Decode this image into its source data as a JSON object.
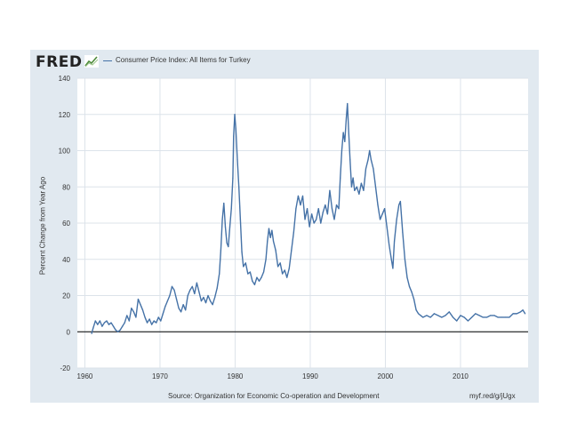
{
  "header": {
    "logo_text": "FRED",
    "logo_icon": "fred-graph-icon"
  },
  "footer": {
    "source": "Source: Organization for Economic Co-operation and Development",
    "shortlink": "myf.red/g/jUgx"
  },
  "colors": {
    "frame": "#e1e9f0",
    "plot_bg": "#ffffff",
    "series": "#4572a7",
    "grid": "#dce3ea",
    "zero_line": "#000000"
  },
  "chart_data": {
    "type": "line",
    "title": "",
    "xlabel": "",
    "ylabel": "Percent Change from Year Ago",
    "xlim": [
      1959,
      2019
    ],
    "ylim": [
      -20,
      140
    ],
    "x_ticks": [
      1960,
      1970,
      1980,
      1990,
      2000,
      2010
    ],
    "y_ticks": [
      -20,
      0,
      20,
      40,
      60,
      80,
      100,
      120,
      140
    ],
    "grid": true,
    "zero_line": true,
    "legend": "top-left",
    "series": [
      {
        "name": "Consumer Price Index: All Items for Turkey",
        "points": [
          [
            1960.9,
            -1
          ],
          [
            1961.1,
            2
          ],
          [
            1961.4,
            6
          ],
          [
            1961.7,
            4
          ],
          [
            1962.0,
            6
          ],
          [
            1962.3,
            3
          ],
          [
            1962.6,
            5
          ],
          [
            1962.9,
            6
          ],
          [
            1963.2,
            4
          ],
          [
            1963.5,
            5
          ],
          [
            1963.8,
            3
          ],
          [
            1964.1,
            1
          ],
          [
            1964.4,
            0
          ],
          [
            1964.7,
            1
          ],
          [
            1965.0,
            3
          ],
          [
            1965.3,
            5
          ],
          [
            1965.6,
            9
          ],
          [
            1965.9,
            6
          ],
          [
            1966.2,
            13
          ],
          [
            1966.5,
            11
          ],
          [
            1966.8,
            8
          ],
          [
            1967.1,
            18
          ],
          [
            1967.4,
            15
          ],
          [
            1967.7,
            12
          ],
          [
            1968.0,
            8
          ],
          [
            1968.3,
            5
          ],
          [
            1968.6,
            7
          ],
          [
            1968.9,
            4
          ],
          [
            1969.2,
            6
          ],
          [
            1969.5,
            5
          ],
          [
            1969.8,
            8
          ],
          [
            1970.1,
            6
          ],
          [
            1970.4,
            10
          ],
          [
            1970.7,
            14
          ],
          [
            1971.0,
            17
          ],
          [
            1971.3,
            20
          ],
          [
            1971.6,
            25
          ],
          [
            1971.9,
            23
          ],
          [
            1972.2,
            18
          ],
          [
            1972.5,
            13
          ],
          [
            1972.8,
            11
          ],
          [
            1973.1,
            15
          ],
          [
            1973.4,
            12
          ],
          [
            1973.7,
            20
          ],
          [
            1974.0,
            23
          ],
          [
            1974.3,
            25
          ],
          [
            1974.6,
            21
          ],
          [
            1974.9,
            27
          ],
          [
            1975.2,
            22
          ],
          [
            1975.5,
            17
          ],
          [
            1975.8,
            19
          ],
          [
            1976.1,
            16
          ],
          [
            1976.4,
            20
          ],
          [
            1976.7,
            17
          ],
          [
            1977.0,
            15
          ],
          [
            1977.3,
            19
          ],
          [
            1977.6,
            24
          ],
          [
            1977.9,
            32
          ],
          [
            1978.1,
            45
          ],
          [
            1978.3,
            62
          ],
          [
            1978.5,
            71
          ],
          [
            1978.7,
            58
          ],
          [
            1978.9,
            49
          ],
          [
            1979.1,
            47
          ],
          [
            1979.3,
            58
          ],
          [
            1979.5,
            68
          ],
          [
            1979.7,
            85
          ],
          [
            1979.8,
            108
          ],
          [
            1979.95,
            120
          ],
          [
            1980.1,
            112
          ],
          [
            1980.3,
            95
          ],
          [
            1980.5,
            80
          ],
          [
            1980.7,
            62
          ],
          [
            1980.9,
            44
          ],
          [
            1981.1,
            36
          ],
          [
            1981.4,
            38
          ],
          [
            1981.7,
            32
          ],
          [
            1982.0,
            33
          ],
          [
            1982.3,
            28
          ],
          [
            1982.6,
            26
          ],
          [
            1982.9,
            30
          ],
          [
            1983.2,
            28
          ],
          [
            1983.5,
            30
          ],
          [
            1983.8,
            33
          ],
          [
            1984.1,
            40
          ],
          [
            1984.3,
            50
          ],
          [
            1984.5,
            57
          ],
          [
            1984.7,
            52
          ],
          [
            1984.9,
            56
          ],
          [
            1985.1,
            50
          ],
          [
            1985.4,
            45
          ],
          [
            1985.7,
            36
          ],
          [
            1986.0,
            38
          ],
          [
            1986.3,
            32
          ],
          [
            1986.6,
            34
          ],
          [
            1986.9,
            30
          ],
          [
            1987.2,
            35
          ],
          [
            1987.5,
            45
          ],
          [
            1987.8,
            55
          ],
          [
            1988.1,
            68
          ],
          [
            1988.4,
            75
          ],
          [
            1988.7,
            70
          ],
          [
            1989.0,
            75
          ],
          [
            1989.3,
            62
          ],
          [
            1989.6,
            68
          ],
          [
            1989.9,
            58
          ],
          [
            1990.2,
            65
          ],
          [
            1990.5,
            60
          ],
          [
            1990.8,
            62
          ],
          [
            1991.1,
            68
          ],
          [
            1991.4,
            60
          ],
          [
            1991.7,
            66
          ],
          [
            1992.0,
            70
          ],
          [
            1992.3,
            65
          ],
          [
            1992.6,
            78
          ],
          [
            1992.9,
            68
          ],
          [
            1993.2,
            62
          ],
          [
            1993.5,
            70
          ],
          [
            1993.8,
            68
          ],
          [
            1994.0,
            85
          ],
          [
            1994.2,
            100
          ],
          [
            1994.4,
            110
          ],
          [
            1994.6,
            105
          ],
          [
            1994.8,
            118
          ],
          [
            1994.95,
            126
          ],
          [
            1995.1,
            112
          ],
          [
            1995.3,
            95
          ],
          [
            1995.5,
            80
          ],
          [
            1995.7,
            85
          ],
          [
            1995.9,
            78
          ],
          [
            1996.2,
            80
          ],
          [
            1996.5,
            76
          ],
          [
            1996.8,
            82
          ],
          [
            1997.1,
            78
          ],
          [
            1997.4,
            90
          ],
          [
            1997.7,
            95
          ],
          [
            1997.9,
            100
          ],
          [
            1998.1,
            95
          ],
          [
            1998.4,
            90
          ],
          [
            1998.7,
            80
          ],
          [
            1999.0,
            70
          ],
          [
            1999.3,
            62
          ],
          [
            1999.6,
            65
          ],
          [
            1999.9,
            68
          ],
          [
            2000.2,
            58
          ],
          [
            2000.5,
            48
          ],
          [
            2000.8,
            40
          ],
          [
            2001.0,
            35
          ],
          [
            2001.2,
            50
          ],
          [
            2001.5,
            62
          ],
          [
            2001.8,
            70
          ],
          [
            2002.0,
            72
          ],
          [
            2002.3,
            55
          ],
          [
            2002.6,
            40
          ],
          [
            2002.9,
            30
          ],
          [
            2003.2,
            25
          ],
          [
            2003.5,
            22
          ],
          [
            2003.8,
            18
          ],
          [
            2004.1,
            12
          ],
          [
            2004.4,
            10
          ],
          [
            2004.7,
            9
          ],
          [
            2005.0,
            8
          ],
          [
            2005.5,
            9
          ],
          [
            2006.0,
            8
          ],
          [
            2006.5,
            10
          ],
          [
            2007.0,
            9
          ],
          [
            2007.5,
            8
          ],
          [
            2008.0,
            9
          ],
          [
            2008.5,
            11
          ],
          [
            2009.0,
            8
          ],
          [
            2009.5,
            6
          ],
          [
            2010.0,
            9
          ],
          [
            2010.5,
            8
          ],
          [
            2011.0,
            6
          ],
          [
            2011.5,
            8
          ],
          [
            2012.0,
            10
          ],
          [
            2012.5,
            9
          ],
          [
            2013.0,
            8
          ],
          [
            2013.5,
            8
          ],
          [
            2014.0,
            9
          ],
          [
            2014.5,
            9
          ],
          [
            2015.0,
            8
          ],
          [
            2015.5,
            8
          ],
          [
            2016.0,
            8
          ],
          [
            2016.5,
            8
          ],
          [
            2017.0,
            10
          ],
          [
            2017.5,
            10
          ],
          [
            2018.0,
            11
          ],
          [
            2018.3,
            12
          ],
          [
            2018.6,
            10
          ]
        ]
      }
    ]
  }
}
